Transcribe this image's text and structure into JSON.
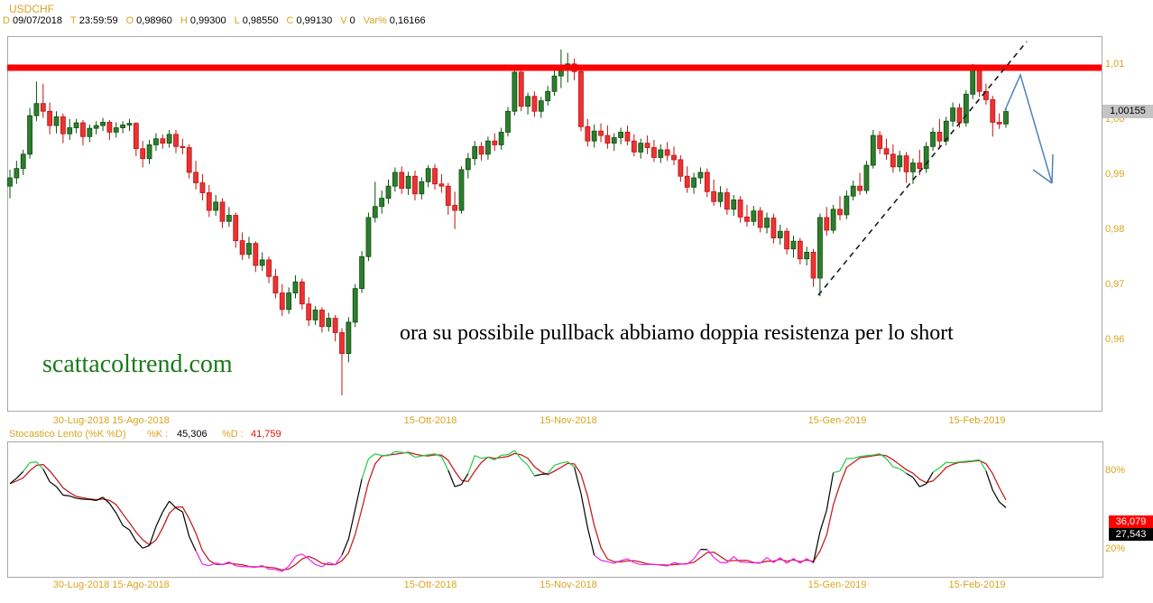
{
  "header": {
    "symbol": "USDCHF",
    "fields": [
      {
        "label": "D",
        "value": "09/07/2018"
      },
      {
        "label": "T",
        "value": "23:59:59"
      },
      {
        "label": "O",
        "value": "0,98960"
      },
      {
        "label": "H",
        "value": "0,99300"
      },
      {
        "label": "L",
        "value": "0,98550"
      },
      {
        "label": "C",
        "value": "0,99130"
      },
      {
        "label": "V",
        "value": "0"
      },
      {
        "label": "Var%",
        "value": "0,16166"
      }
    ]
  },
  "main_panel": {
    "last_price_label": "1,00155",
    "watermark": "scattacoltrend.com",
    "annotation": "ora su possibile pullback abbiamo doppia resistenza per lo short"
  },
  "stoch_header": {
    "title": "Stocastico Lento (%K %D)",
    "k_label": "%K :",
    "k_value": "45,306",
    "d_label": "%D :",
    "d_value": "41,759"
  },
  "stoch_panel": {
    "tick_80": "80%",
    "tick_20": "20%",
    "d_box_value": "36,079",
    "k_box_value": "27,543"
  },
  "colors": {
    "label_orange": "#DAA520",
    "candle_up": "#2E7D2E",
    "candle_up_edge": "#0B4F0B",
    "candle_down": "#EA3333",
    "candle_down_edge": "#C01212",
    "resistance_red": "#FF0000",
    "arrow_blue": "#4F81BD",
    "stoch_k": "#000000",
    "stoch_d": "#C32020",
    "stoch_overbought": "#22CC44",
    "stoch_oversold": "#EE22EE",
    "box_d_bg": "#FF0000",
    "box_k_bg": "#000000",
    "border_gray": "#A8A8A8"
  },
  "chart_data": [
    {
      "type": "candlestick",
      "title": "USDCHF daily",
      "x_labels": [
        {
          "text": "30-Lug-2018",
          "x": 90
        },
        {
          "text": "15-Ago-2018",
          "x": 156
        },
        {
          "text": "15-Ott-2018",
          "x": 477
        },
        {
          "text": "15-Nov-2018",
          "x": 630
        },
        {
          "text": "15-Gen-2019",
          "x": 928
        },
        {
          "text": "15-Feb-2019",
          "x": 1083
        }
      ],
      "y_ticks": [
        {
          "label": "1,01",
          "price": 1.01
        },
        {
          "label": "1,00",
          "price": 1.0
        },
        {
          "label": "0,99",
          "price": 0.99
        },
        {
          "label": "0,98",
          "price": 0.98
        },
        {
          "label": "0,97",
          "price": 0.97
        },
        {
          "label": "0,96",
          "price": 0.96
        }
      ],
      "ylim": [
        0.947,
        1.0155
      ],
      "grid": false,
      "last_price": 1.00155,
      "resistance_line_price": 1.0095,
      "annotations": {
        "dashed_trendline": {
          "x1": 907,
          "y1": 327,
          "x2": 1138,
          "y2": 46
        },
        "blue_arrow": {
          "points": [
            [
              1114,
              122
            ],
            [
              1131,
              83
            ],
            [
              1166,
              203
            ]
          ],
          "head": [
            [
              1145,
              188
            ],
            [
              1167,
              171
            ]
          ]
        }
      },
      "candles": [
        [
          0.988,
          0.991,
          0.9858,
          0.9895
        ],
        [
          0.9895,
          0.9926,
          0.9884,
          0.9912
        ],
        [
          0.9912,
          0.9946,
          0.99,
          0.9938
        ],
        [
          0.9938,
          1.0022,
          0.993,
          1.0008
        ],
        [
          1.0008,
          1.007,
          0.9998,
          1.003
        ],
        [
          1.003,
          1.0066,
          1.0004,
          1.0016
        ],
        [
          1.0016,
          1.0032,
          0.9974,
          0.999
        ],
        [
          0.999,
          1.0016,
          0.9976,
          1.0006
        ],
        [
          1.0006,
          1.0012,
          0.9958,
          0.9975
        ],
        [
          0.9975,
          1.0002,
          0.9964,
          0.9986
        ],
        [
          0.9986,
          1.0002,
          0.9976,
          0.9995
        ],
        [
          0.9995,
          1.0,
          0.9954,
          0.997
        ],
        [
          0.997,
          0.9992,
          0.996,
          0.9985
        ],
        [
          0.9985,
          0.9998,
          0.9974,
          0.999
        ],
        [
          0.999,
          1.0004,
          0.998,
          0.9996
        ],
        [
          0.9996,
          1.0,
          0.9964,
          0.9978
        ],
        [
          0.9978,
          0.9996,
          0.9968,
          0.9986
        ],
        [
          0.9986,
          0.9998,
          0.9976,
          0.9991
        ],
        [
          0.9991,
          1.0002,
          0.998,
          0.9994
        ],
        [
          0.9994,
          0.9996,
          0.9934,
          0.9948
        ],
        [
          0.9948,
          0.9962,
          0.9914,
          0.993
        ],
        [
          0.993,
          0.9964,
          0.992,
          0.9955
        ],
        [
          0.9955,
          0.9976,
          0.9944,
          0.9966
        ],
        [
          0.9966,
          0.9974,
          0.9948,
          0.9958
        ],
        [
          0.9958,
          0.9982,
          0.995,
          0.9974
        ],
        [
          0.9974,
          0.9982,
          0.994,
          0.9952
        ],
        [
          0.9952,
          0.9966,
          0.9938,
          0.995
        ],
        [
          0.995,
          0.9956,
          0.9894,
          0.9905
        ],
        [
          0.9905,
          0.9926,
          0.9874,
          0.9886
        ],
        [
          0.9886,
          0.9902,
          0.9854,
          0.9868
        ],
        [
          0.9868,
          0.9882,
          0.9824,
          0.9836
        ],
        [
          0.9836,
          0.9864,
          0.9826,
          0.9851
        ],
        [
          0.9851,
          0.9858,
          0.9804,
          0.9816
        ],
        [
          0.9816,
          0.9842,
          0.9806,
          0.9827
        ],
        [
          0.9827,
          0.9832,
          0.9768,
          0.9781
        ],
        [
          0.9781,
          0.9796,
          0.9746,
          0.9756
        ],
        [
          0.9756,
          0.9788,
          0.9748,
          0.9776
        ],
        [
          0.9776,
          0.978,
          0.9724,
          0.9736
        ],
        [
          0.9736,
          0.976,
          0.9726,
          0.9746
        ],
        [
          0.9746,
          0.9752,
          0.9704,
          0.9716
        ],
        [
          0.9716,
          0.973,
          0.9676,
          0.9686
        ],
        [
          0.9686,
          0.9702,
          0.9644,
          0.9656
        ],
        [
          0.9656,
          0.9696,
          0.9648,
          0.9686
        ],
        [
          0.9686,
          0.9718,
          0.9676,
          0.9706
        ],
        [
          0.9706,
          0.9712,
          0.9656,
          0.9666
        ],
        [
          0.9666,
          0.9678,
          0.9626,
          0.9637
        ],
        [
          0.9637,
          0.9662,
          0.9628,
          0.9655
        ],
        [
          0.9655,
          0.966,
          0.9614,
          0.9625
        ],
        [
          0.9625,
          0.965,
          0.9616,
          0.964
        ],
        [
          0.964,
          0.9646,
          0.9598,
          0.9614
        ],
        [
          0.9614,
          0.9622,
          0.95,
          0.9576
        ],
        [
          0.9576,
          0.9642,
          0.956,
          0.9633
        ],
        [
          0.9633,
          0.9702,
          0.9624,
          0.9694
        ],
        [
          0.9694,
          0.9762,
          0.9686,
          0.9752
        ],
        [
          0.9752,
          0.9832,
          0.9744,
          0.9823
        ],
        [
          0.9823,
          0.9888,
          0.9814,
          0.9843
        ],
        [
          0.9843,
          0.9872,
          0.983,
          0.9858
        ],
        [
          0.9858,
          0.9892,
          0.9848,
          0.988
        ],
        [
          0.988,
          0.9914,
          0.987,
          0.9905
        ],
        [
          0.9905,
          0.9916,
          0.9866,
          0.9876
        ],
        [
          0.9876,
          0.9906,
          0.9864,
          0.9898
        ],
        [
          0.9898,
          0.9908,
          0.9854,
          0.9866
        ],
        [
          0.9866,
          0.9896,
          0.9856,
          0.9888
        ],
        [
          0.9888,
          0.9918,
          0.9878,
          0.9912
        ],
        [
          0.9912,
          0.992,
          0.9874,
          0.9884
        ],
        [
          0.9884,
          0.9902,
          0.9868,
          0.988
        ],
        [
          0.988,
          0.9886,
          0.9828,
          0.9845
        ],
        [
          0.9845,
          0.987,
          0.9802,
          0.9836
        ],
        [
          0.9836,
          0.9916,
          0.983,
          0.991
        ],
        [
          0.991,
          0.994,
          0.9894,
          0.993
        ],
        [
          0.993,
          0.9962,
          0.9918,
          0.9952
        ],
        [
          0.9952,
          0.996,
          0.9926,
          0.9938
        ],
        [
          0.9938,
          0.997,
          0.9928,
          0.9962
        ],
        [
          0.9962,
          0.9976,
          0.9944,
          0.9955
        ],
        [
          0.9955,
          0.9986,
          0.9946,
          0.9978
        ],
        [
          0.9978,
          1.0024,
          0.997,
          1.0016
        ],
        [
          1.0016,
          1.0095,
          1.0008,
          1.0087
        ],
        [
          1.0087,
          1.0094,
          1.0016,
          1.0025
        ],
        [
          1.0025,
          1.005,
          1.001,
          1.0043
        ],
        [
          1.0043,
          1.0052,
          1.0006,
          1.0016
        ],
        [
          1.0016,
          1.0042,
          1.0004,
          1.0035
        ],
        [
          1.0035,
          1.0062,
          1.0026,
          1.0052
        ],
        [
          1.0052,
          1.0092,
          1.0044,
          1.008
        ],
        [
          1.008,
          1.0128,
          1.0058,
          1.0095
        ],
        [
          1.0095,
          1.0122,
          1.0068,
          1.0102
        ],
        [
          1.0102,
          1.0112,
          1.0072,
          1.0088
        ],
        [
          1.0088,
          1.0096,
          0.998,
          0.9988
        ],
        [
          0.9988,
          1.0002,
          0.9952,
          0.9962
        ],
        [
          0.9962,
          0.9992,
          0.995,
          0.998
        ],
        [
          0.998,
          0.9994,
          0.996,
          0.9972
        ],
        [
          0.9972,
          0.999,
          0.9948,
          0.9958
        ],
        [
          0.9958,
          0.9976,
          0.9944,
          0.9968
        ],
        [
          0.9968,
          0.9986,
          0.9956,
          0.9978
        ],
        [
          0.9978,
          0.999,
          0.9954,
          0.9962
        ],
        [
          0.9962,
          0.9974,
          0.9934,
          0.9942
        ],
        [
          0.9942,
          0.9966,
          0.993,
          0.9958
        ],
        [
          0.9958,
          0.9972,
          0.9938,
          0.995
        ],
        [
          0.995,
          0.9964,
          0.9924,
          0.9932
        ],
        [
          0.9932,
          0.9956,
          0.9922,
          0.9946
        ],
        [
          0.9946,
          0.996,
          0.9926,
          0.9936
        ],
        [
          0.9936,
          0.9952,
          0.9918,
          0.9928
        ],
        [
          0.9928,
          0.9936,
          0.9888,
          0.9898
        ],
        [
          0.9898,
          0.9916,
          0.9868,
          0.9878
        ],
        [
          0.9878,
          0.9904,
          0.9866,
          0.9895
        ],
        [
          0.9895,
          0.9914,
          0.9884,
          0.9905
        ],
        [
          0.9905,
          0.9912,
          0.986,
          0.987
        ],
        [
          0.987,
          0.9892,
          0.9844,
          0.9852
        ],
        [
          0.9852,
          0.988,
          0.9842,
          0.9868
        ],
        [
          0.9868,
          0.9876,
          0.9828,
          0.9838
        ],
        [
          0.9838,
          0.9864,
          0.9826,
          0.9855
        ],
        [
          0.9855,
          0.9862,
          0.9814,
          0.9824
        ],
        [
          0.9824,
          0.9846,
          0.9806,
          0.9816
        ],
        [
          0.9816,
          0.9844,
          0.9808,
          0.9835
        ],
        [
          0.9835,
          0.9842,
          0.9796,
          0.9805
        ],
        [
          0.9805,
          0.9832,
          0.9794,
          0.9822
        ],
        [
          0.9822,
          0.983,
          0.9776,
          0.9786
        ],
        [
          0.9786,
          0.981,
          0.9774,
          0.9798
        ],
        [
          0.9798,
          0.9804,
          0.9756,
          0.9766
        ],
        [
          0.9766,
          0.979,
          0.975,
          0.978
        ],
        [
          0.978,
          0.9786,
          0.9738,
          0.9748
        ],
        [
          0.9748,
          0.977,
          0.9736,
          0.976
        ],
        [
          0.976,
          0.9766,
          0.9697,
          0.9713
        ],
        [
          0.9713,
          0.983,
          0.968,
          0.9823
        ],
        [
          0.9823,
          0.9842,
          0.979,
          0.98
        ],
        [
          0.98,
          0.9846,
          0.9794,
          0.9838
        ],
        [
          0.9838,
          0.9862,
          0.9818,
          0.9828
        ],
        [
          0.9828,
          0.9872,
          0.982,
          0.9862
        ],
        [
          0.9862,
          0.989,
          0.9854,
          0.988
        ],
        [
          0.988,
          0.9904,
          0.9864,
          0.9872
        ],
        [
          0.9872,
          0.9926,
          0.9866,
          0.9918
        ],
        [
          0.9918,
          0.9982,
          0.9912,
          0.9972
        ],
        [
          0.9972,
          0.998,
          0.9938,
          0.9948
        ],
        [
          0.9948,
          0.9966,
          0.9928,
          0.9938
        ],
        [
          0.9938,
          0.9956,
          0.9904,
          0.9915
        ],
        [
          0.9915,
          0.9944,
          0.9906,
          0.9935
        ],
        [
          0.9935,
          0.9942,
          0.9886,
          0.9906
        ],
        [
          0.9906,
          0.993,
          0.9884,
          0.9922
        ],
        [
          0.9922,
          0.9946,
          0.99,
          0.9912
        ],
        [
          0.9912,
          0.996,
          0.9904,
          0.9952
        ],
        [
          0.9952,
          0.9986,
          0.9944,
          0.9978
        ],
        [
          0.9978,
          1.0002,
          0.9948,
          0.9962
        ],
        [
          0.9962,
          1.0006,
          0.9954,
          0.9998
        ],
        [
          0.9998,
          1.0032,
          0.9988,
          1.0022
        ],
        [
          1.0022,
          1.003,
          0.9986,
          0.9995
        ],
        [
          0.9995,
          1.0054,
          0.9988,
          1.0047
        ],
        [
          1.0047,
          1.0102,
          1.0038,
          1.0092
        ],
        [
          1.0092,
          1.0101,
          1.0042,
          1.0052
        ],
        [
          1.0052,
          1.0066,
          1.0028,
          1.0037
        ],
        [
          1.0037,
          1.0044,
          0.997,
          0.9996
        ],
        [
          0.9996,
          1.0012,
          0.9984,
          0.9993
        ],
        [
          0.9993,
          1.0021,
          0.9986,
          1.00155
        ]
      ]
    },
    {
      "type": "line",
      "title": "Stocastico Lento (%K %D)",
      "derived_from": "slow stochastic (14,3,3) of candles above",
      "y_ticks": [
        {
          "label": "80%",
          "value": 80
        },
        {
          "label": "20%",
          "value": 20
        }
      ],
      "ylim": [
        0,
        103
      ],
      "legend_position": "header-row",
      "series": [
        {
          "name": "%K",
          "color": "#000000",
          "last_value_label": "27,543"
        },
        {
          "name": "%D",
          "color": "#C32020",
          "last_value_label": "36,079"
        }
      ]
    }
  ]
}
